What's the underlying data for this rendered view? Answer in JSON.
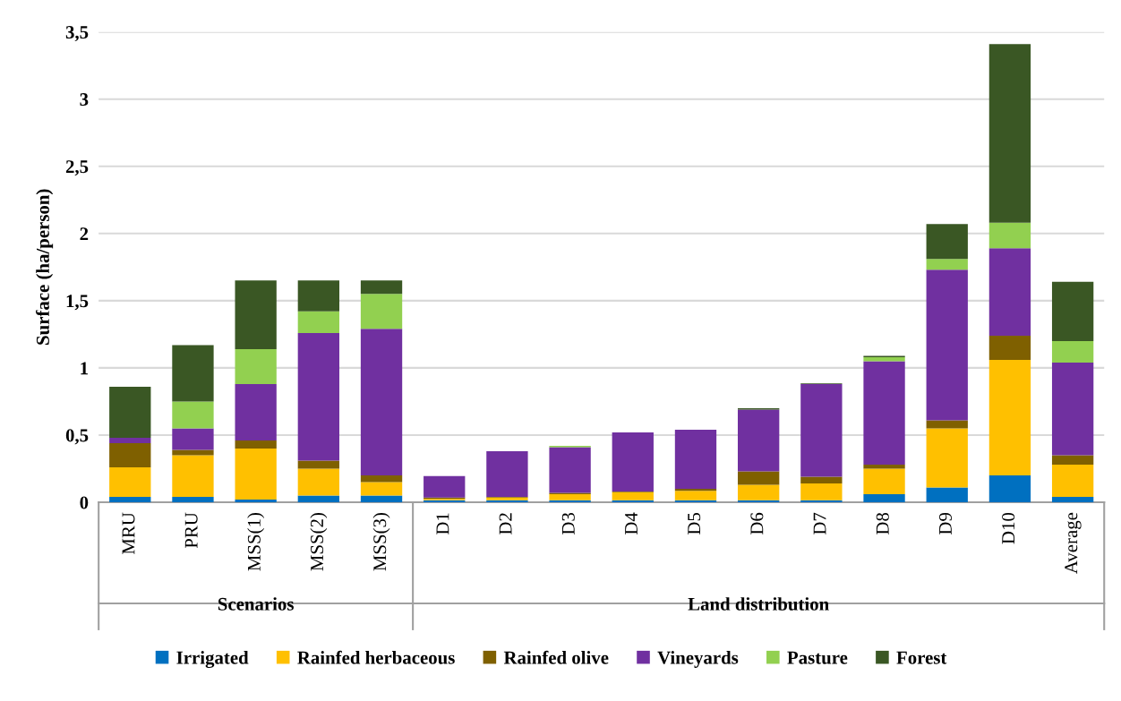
{
  "chart_data": {
    "type": "bar",
    "stacked": true,
    "ylabel": "Surface (ha/person)",
    "categories": [
      "MRU",
      "PRU",
      "MSS(1)",
      "MSS(2)",
      "MSS(3)",
      "D1",
      "D2",
      "D3",
      "D4",
      "D5",
      "D6",
      "D7",
      "D8",
      "D9",
      "D10",
      "Average"
    ],
    "series": [
      {
        "name": "Irrigated",
        "color": "#0070c0",
        "values": [
          0.04,
          0.04,
          0.02,
          0.05,
          0.05,
          0.015,
          0.015,
          0.015,
          0.015,
          0.015,
          0.015,
          0.015,
          0.06,
          0.11,
          0.2,
          0.04
        ]
      },
      {
        "name": "Rainfed herbaceous",
        "color": "#ffc000",
        "values": [
          0.22,
          0.31,
          0.38,
          0.2,
          0.1,
          0.01,
          0.02,
          0.045,
          0.06,
          0.07,
          0.115,
          0.125,
          0.19,
          0.44,
          0.86,
          0.24
        ]
      },
      {
        "name": "Rainfed olive",
        "color": "#7f6000",
        "values": [
          0.18,
          0.04,
          0.06,
          0.06,
          0.05,
          0.01,
          0.005,
          0.01,
          0.005,
          0.015,
          0.1,
          0.05,
          0.03,
          0.06,
          0.18,
          0.07
        ]
      },
      {
        "name": "Vineyards",
        "color": "#7030a0",
        "values": [
          0.04,
          0.16,
          0.42,
          0.95,
          1.09,
          0.16,
          0.34,
          0.34,
          0.44,
          0.44,
          0.46,
          0.69,
          0.77,
          1.12,
          0.65,
          0.69
        ]
      },
      {
        "name": "Pasture",
        "color": "#92d050",
        "values": [
          null,
          0.2,
          0.26,
          0.16,
          0.26,
          null,
          null,
          0.01,
          null,
          null,
          null,
          null,
          0.03,
          0.08,
          0.19,
          0.16
        ]
      },
      {
        "name": "Forest",
        "color": "#3a5724",
        "values": [
          0.38,
          0.42,
          0.51,
          0.23,
          0.1,
          null,
          null,
          null,
          null,
          null,
          0.01,
          0.005,
          0.01,
          0.26,
          1.33,
          0.44
        ]
      }
    ],
    "ylim": [
      0,
      3.5
    ],
    "yticks": [
      0,
      {
        "value": 0.5,
        "label": "0,5"
      },
      1,
      {
        "value": 1.5,
        "label": "1,5"
      },
      2,
      {
        "value": 2.5,
        "label": "2,5"
      },
      3,
      {
        "value": 3.5,
        "label": "3,5"
      }
    ],
    "grid": "y",
    "legend": "bottom",
    "annotations": [
      "Scenarios",
      "Land distribution"
    ]
  }
}
